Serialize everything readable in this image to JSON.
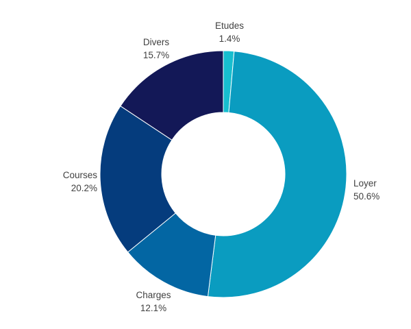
{
  "chart_data": {
    "type": "pie",
    "variant": "donut",
    "title": "",
    "legend": "none",
    "slices": [
      {
        "label": "Etudes",
        "value": 1.4,
        "display": "1.4%",
        "color": "#17BECF"
      },
      {
        "label": "Loyer",
        "value": 50.6,
        "display": "50.6%",
        "color": "#0A9CC0"
      },
      {
        "label": "Charges",
        "value": 12.1,
        "display": "12.1%",
        "color": "#0366A3"
      },
      {
        "label": "Courses",
        "value": 20.2,
        "display": "20.2%",
        "color": "#053C7D"
      },
      {
        "label": "Divers",
        "value": 15.7,
        "display": "15.7%",
        "color": "#131857"
      }
    ]
  }
}
